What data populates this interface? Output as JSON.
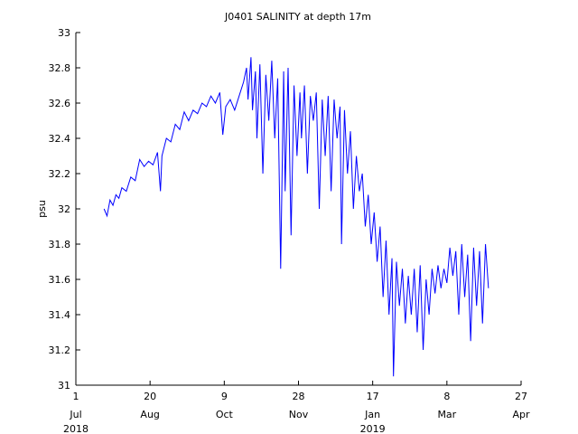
{
  "chart_data": {
    "type": "line",
    "title": "J0401 SALINITY at depth 17m",
    "y_label": "psu",
    "xlim": [
      "2018-07-01",
      "2019-04-27"
    ],
    "xticks": [
      {
        "value": "2018-07-01",
        "label": "1",
        "month": "Jul",
        "year": "2018"
      },
      {
        "value": "2018-08-20",
        "label": "20",
        "month": "Aug"
      },
      {
        "value": "2018-10-09",
        "label": "9",
        "month": "Oct"
      },
      {
        "value": "2018-11-28",
        "label": "28",
        "month": "Nov"
      },
      {
        "value": "2019-01-17",
        "label": "17",
        "month": "Jan",
        "year": "2019"
      },
      {
        "value": "2019-03-08",
        "label": "8",
        "month": "Mar"
      },
      {
        "value": "2019-04-27",
        "label": "27",
        "month": "Apr"
      }
    ],
    "ylim": [
      31,
      33
    ],
    "yticks": [
      31,
      {
        "value": 31.2,
        "label": "31.2"
      },
      {
        "value": 31.4,
        "label": "31.4"
      },
      {
        "value": 31.6,
        "label": "31.6"
      },
      {
        "value": 31.8,
        "label": "31.8"
      },
      32,
      {
        "value": 32.2,
        "label": "32.2"
      },
      {
        "value": 32.4,
        "label": "32.4"
      },
      {
        "value": 32.6,
        "label": "32.6"
      },
      {
        "value": 32.8,
        "label": "32.8"
      },
      33
    ],
    "series": [
      {
        "color": "#0000ff",
        "x": [
          "2018-07-20",
          "2018-07-22",
          "2018-07-24",
          "2018-07-26",
          "2018-07-28",
          "2018-07-30",
          "2018-08-01",
          "2018-08-04",
          "2018-08-07",
          "2018-08-10",
          "2018-08-13",
          "2018-08-16",
          "2018-08-19",
          "2018-08-22",
          "2018-08-25",
          "2018-08-27",
          "2018-08-28",
          "2018-08-31",
          "2018-09-03",
          "2018-09-06",
          "2018-09-09",
          "2018-09-12",
          "2018-09-15",
          "2018-09-18",
          "2018-09-21",
          "2018-09-24",
          "2018-09-27",
          "2018-09-30",
          "2018-10-03",
          "2018-10-06",
          "2018-10-08",
          "2018-10-10",
          "2018-10-13",
          "2018-10-16",
          "2018-10-19",
          "2018-10-22",
          "2018-10-24",
          "2018-10-25",
          "2018-10-27",
          "2018-10-28",
          "2018-10-30",
          "2018-10-31",
          "2018-11-02",
          "2018-11-04",
          "2018-11-06",
          "2018-11-08",
          "2018-11-10",
          "2018-11-12",
          "2018-11-14",
          "2018-11-16",
          "2018-11-18",
          "2018-11-19",
          "2018-11-21",
          "2018-11-23",
          "2018-11-25",
          "2018-11-27",
          "2018-11-29",
          "2018-11-30",
          "2018-12-02",
          "2018-12-04",
          "2018-12-06",
          "2018-12-08",
          "2018-12-10",
          "2018-12-12",
          "2018-12-14",
          "2018-12-16",
          "2018-12-18",
          "2018-12-20",
          "2018-12-22",
          "2018-12-24",
          "2018-12-26",
          "2018-12-27",
          "2018-12-29",
          "2018-12-31",
          "2019-01-02",
          "2019-01-04",
          "2019-01-06",
          "2019-01-08",
          "2019-01-10",
          "2019-01-12",
          "2019-01-14",
          "2019-01-16",
          "2019-01-18",
          "2019-01-20",
          "2019-01-22",
          "2019-01-24",
          "2019-01-26",
          "2019-01-28",
          "2019-01-30",
          "2019-01-31",
          "2019-02-02",
          "2019-02-04",
          "2019-02-06",
          "2019-02-08",
          "2019-02-10",
          "2019-02-12",
          "2019-02-14",
          "2019-02-16",
          "2019-02-18",
          "2019-02-20",
          "2019-02-22",
          "2019-02-24",
          "2019-02-26",
          "2019-02-28",
          "2019-03-02",
          "2019-03-04",
          "2019-03-06",
          "2019-03-08",
          "2019-03-10",
          "2019-03-12",
          "2019-03-14",
          "2019-03-16",
          "2019-03-18",
          "2019-03-20",
          "2019-03-22",
          "2019-03-24",
          "2019-03-26",
          "2019-03-28",
          "2019-03-30",
          "2019-04-01",
          "2019-04-03",
          "2019-04-05"
        ],
        "values": [
          32.0,
          31.96,
          32.05,
          32.02,
          32.08,
          32.06,
          32.12,
          32.1,
          32.18,
          32.16,
          32.28,
          32.24,
          32.27,
          32.25,
          32.32,
          32.1,
          32.3,
          32.4,
          32.38,
          32.48,
          32.45,
          32.55,
          32.5,
          32.56,
          32.54,
          32.6,
          32.58,
          32.64,
          32.6,
          32.66,
          32.42,
          32.58,
          32.62,
          32.56,
          32.64,
          32.72,
          32.8,
          32.62,
          32.86,
          32.56,
          32.78,
          32.4,
          32.82,
          32.2,
          32.76,
          32.5,
          32.84,
          32.4,
          32.74,
          31.66,
          32.78,
          32.1,
          32.8,
          31.85,
          32.7,
          32.3,
          32.66,
          32.4,
          32.7,
          32.2,
          32.64,
          32.5,
          32.66,
          32.0,
          32.62,
          32.3,
          32.64,
          32.1,
          32.62,
          32.4,
          32.58,
          31.8,
          32.56,
          32.2,
          32.44,
          32.0,
          32.3,
          32.1,
          32.2,
          31.9,
          32.08,
          31.8,
          31.98,
          31.7,
          31.9,
          31.5,
          31.82,
          31.4,
          31.72,
          31.05,
          31.7,
          31.45,
          31.66,
          31.35,
          31.62,
          31.4,
          31.66,
          31.3,
          31.68,
          31.2,
          31.6,
          31.4,
          31.66,
          31.52,
          31.68,
          31.55,
          31.66,
          31.58,
          31.78,
          31.62,
          31.76,
          31.4,
          31.8,
          31.5,
          31.74,
          31.25,
          31.78,
          31.45,
          31.76,
          31.35,
          31.8,
          31.55
        ]
      }
    ]
  }
}
